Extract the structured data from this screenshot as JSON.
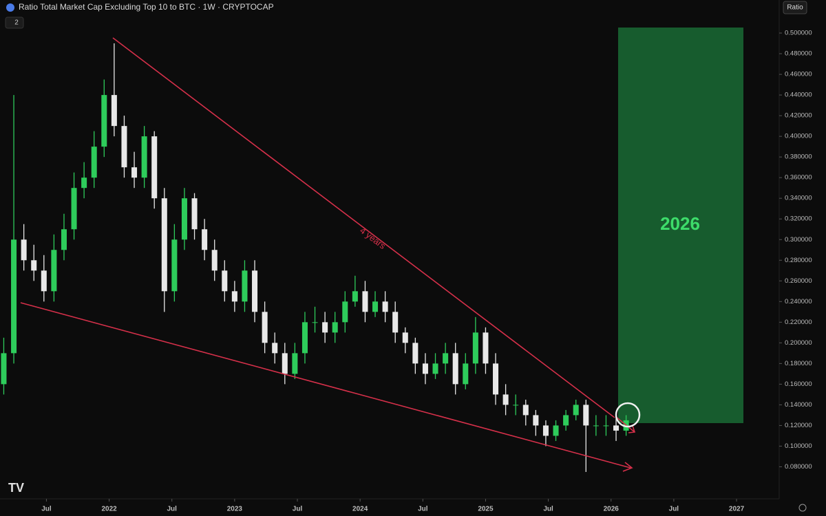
{
  "header": {
    "title": "Ratio Total Market Cap Excluding Top 10 to BTC · 1W · CRYPTOCAP",
    "indicator_count": "2",
    "scale_label": "Ratio"
  },
  "chart_data": {
    "type": "candlestick",
    "annotations": {
      "trend_label": "4 years",
      "target_label": "2026"
    },
    "up_color": "#2ecc5b",
    "down_color": "#e8e8e8",
    "x": [
      2021.16,
      2021.24,
      2021.32,
      2021.4,
      2021.48,
      2021.56,
      2021.64,
      2021.72,
      2021.8,
      2021.88,
      2021.96,
      2022.04,
      2022.12,
      2022.2,
      2022.28,
      2022.36,
      2022.44,
      2022.52,
      2022.6,
      2022.68,
      2022.76,
      2022.84,
      2022.92,
      2023.0,
      2023.08,
      2023.16,
      2023.24,
      2023.32,
      2023.4,
      2023.48,
      2023.56,
      2023.64,
      2023.72,
      2023.8,
      2023.88,
      2023.96,
      2024.04,
      2024.12,
      2024.2,
      2024.28,
      2024.36,
      2024.44,
      2024.52,
      2024.6,
      2024.68,
      2024.76,
      2024.84,
      2024.92,
      2025.0,
      2025.08,
      2025.16,
      2025.24,
      2025.32,
      2025.4,
      2025.48,
      2025.56,
      2025.64,
      2025.72,
      2025.8,
      2025.88,
      2025.96,
      2026.04,
      2026.12
    ],
    "open": [
      0.16,
      0.19,
      0.3,
      0.28,
      0.27,
      0.25,
      0.29,
      0.31,
      0.35,
      0.36,
      0.39,
      0.44,
      0.41,
      0.37,
      0.36,
      0.4,
      0.34,
      0.25,
      0.3,
      0.34,
      0.31,
      0.29,
      0.27,
      0.25,
      0.24,
      0.27,
      0.23,
      0.2,
      0.19,
      0.17,
      0.19,
      0.22,
      0.22,
      0.21,
      0.22,
      0.24,
      0.25,
      0.23,
      0.24,
      0.23,
      0.21,
      0.2,
      0.18,
      0.17,
      0.18,
      0.19,
      0.16,
      0.18,
      0.21,
      0.18,
      0.15,
      0.14,
      0.14,
      0.13,
      0.12,
      0.11,
      0.12,
      0.13,
      0.14,
      0.12,
      0.12,
      0.12,
      0.115
    ],
    "high": [
      0.205,
      0.44,
      0.315,
      0.295,
      0.285,
      0.305,
      0.325,
      0.365,
      0.375,
      0.405,
      0.455,
      0.49,
      0.42,
      0.385,
      0.41,
      0.405,
      0.35,
      0.315,
      0.35,
      0.345,
      0.32,
      0.3,
      0.28,
      0.26,
      0.28,
      0.28,
      0.24,
      0.21,
      0.2,
      0.2,
      0.23,
      0.235,
      0.23,
      0.23,
      0.25,
      0.265,
      0.26,
      0.25,
      0.25,
      0.24,
      0.215,
      0.205,
      0.19,
      0.19,
      0.2,
      0.2,
      0.19,
      0.225,
      0.215,
      0.19,
      0.16,
      0.15,
      0.145,
      0.135,
      0.125,
      0.125,
      0.135,
      0.145,
      0.145,
      0.13,
      0.13,
      0.13,
      0.13
    ],
    "low": [
      0.15,
      0.18,
      0.27,
      0.26,
      0.24,
      0.24,
      0.28,
      0.3,
      0.34,
      0.35,
      0.38,
      0.4,
      0.36,
      0.35,
      0.35,
      0.33,
      0.23,
      0.24,
      0.29,
      0.3,
      0.28,
      0.26,
      0.24,
      0.23,
      0.23,
      0.22,
      0.19,
      0.18,
      0.16,
      0.165,
      0.18,
      0.21,
      0.2,
      0.2,
      0.21,
      0.235,
      0.22,
      0.225,
      0.22,
      0.2,
      0.19,
      0.17,
      0.16,
      0.165,
      0.17,
      0.15,
      0.155,
      0.17,
      0.17,
      0.14,
      0.13,
      0.13,
      0.12,
      0.11,
      0.1,
      0.105,
      0.115,
      0.125,
      0.075,
      0.11,
      0.11,
      0.105,
      0.11
    ],
    "close": [
      0.19,
      0.3,
      0.28,
      0.27,
      0.25,
      0.29,
      0.31,
      0.35,
      0.36,
      0.39,
      0.44,
      0.41,
      0.37,
      0.36,
      0.4,
      0.34,
      0.25,
      0.3,
      0.34,
      0.31,
      0.29,
      0.27,
      0.25,
      0.24,
      0.27,
      0.23,
      0.2,
      0.19,
      0.17,
      0.19,
      0.22,
      0.22,
      0.21,
      0.22,
      0.24,
      0.25,
      0.23,
      0.24,
      0.23,
      0.21,
      0.2,
      0.18,
      0.17,
      0.18,
      0.19,
      0.16,
      0.18,
      0.21,
      0.18,
      0.15,
      0.14,
      0.14,
      0.13,
      0.12,
      0.11,
      0.12,
      0.13,
      0.14,
      0.12,
      0.12,
      0.12,
      0.115,
      0.125
    ],
    "xlim": [
      2021.13,
      2027.34
    ],
    "ylim": [
      0.049,
      0.532
    ],
    "xticks": [
      {
        "value": 2021.5,
        "label": "Jul"
      },
      2022,
      {
        "value": 2022.5,
        "label": "Jul"
      },
      2023,
      {
        "value": 2023.5,
        "label": "Jul"
      },
      2024,
      {
        "value": 2024.5,
        "label": "Jul"
      },
      2025,
      {
        "value": 2025.5,
        "label": "Jul"
      },
      2026,
      {
        "value": 2026.5,
        "label": "Jul"
      },
      2027
    ],
    "yticks": [
      {
        "value": 0.08,
        "label": "0.080000"
      },
      {
        "value": 0.1,
        "label": "0.100000"
      },
      {
        "value": 0.12,
        "label": "0.120000"
      },
      {
        "value": 0.14,
        "label": "0.140000"
      },
      {
        "value": 0.16,
        "label": "0.160000"
      },
      {
        "value": 0.18,
        "label": "0.180000"
      },
      {
        "value": 0.2,
        "label": "0.200000"
      },
      {
        "value": 0.22,
        "label": "0.220000"
      },
      {
        "value": 0.24,
        "label": "0.240000"
      },
      {
        "value": 0.26,
        "label": "0.260000"
      },
      {
        "value": 0.28,
        "label": "0.280000"
      },
      {
        "value": 0.3,
        "label": "0.300000"
      },
      {
        "value": 0.32,
        "label": "0.320000"
      },
      {
        "value": 0.34,
        "label": "0.340000"
      },
      {
        "value": 0.36,
        "label": "0.360000"
      },
      {
        "value": 0.38,
        "label": "0.380000"
      },
      {
        "value": 0.4,
        "label": "0.400000"
      },
      {
        "value": 0.42,
        "label": "0.420000"
      },
      {
        "value": 0.44,
        "label": "0.440000"
      },
      {
        "value": 0.46,
        "label": "0.460000"
      },
      {
        "value": 0.48,
        "label": "0.480000"
      },
      {
        "value": 0.5,
        "label": "0.500000"
      }
    ]
  }
}
